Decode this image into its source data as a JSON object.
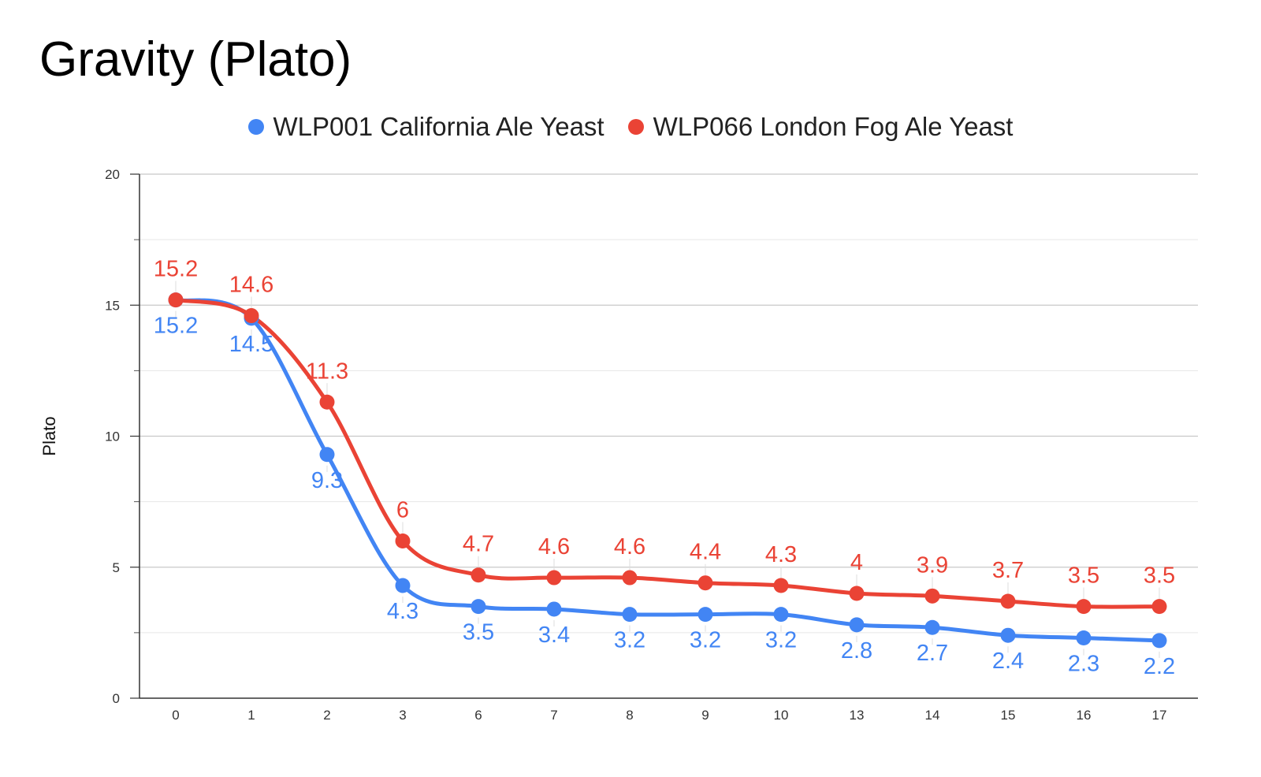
{
  "chart_data": {
    "type": "line",
    "title": "Gravity (Plato)",
    "xlabel": "",
    "ylabel": "Plato",
    "categories": [
      "0",
      "1",
      "2",
      "3",
      "6",
      "7",
      "8",
      "9",
      "10",
      "13",
      "14",
      "15",
      "16",
      "17"
    ],
    "ylim": [
      0,
      20
    ],
    "yticks": [
      "0",
      "5",
      "10",
      "15",
      "20"
    ],
    "grid": true,
    "legend_position": "top",
    "series": [
      {
        "name": "WLP001 California Ale Yeast",
        "color": "#4285f4",
        "values": [
          15.2,
          14.5,
          9.3,
          4.3,
          3.5,
          3.4,
          3.2,
          3.2,
          3.2,
          2.8,
          2.7,
          2.4,
          2.3,
          2.2
        ],
        "labels": [
          "15.2",
          "14.5",
          "9.3",
          "4.3",
          "3.5",
          "3.4",
          "3.2",
          "3.2",
          "3.2",
          "2.8",
          "2.7",
          "2.4",
          "2.3",
          "2.2"
        ],
        "label_position": "below"
      },
      {
        "name": "WLP066 London Fog Ale Yeast",
        "color": "#ea4335",
        "values": [
          15.2,
          14.6,
          11.3,
          6,
          4.7,
          4.6,
          4.6,
          4.4,
          4.3,
          4,
          3.9,
          3.7,
          3.5,
          3.5
        ],
        "labels": [
          "15.2",
          "14.6",
          "11.3",
          "6",
          "4.7",
          "4.6",
          "4.6",
          "4.4",
          "4.3",
          "4",
          "3.9",
          "3.7",
          "3.5",
          "3.5"
        ],
        "label_position": "above"
      }
    ]
  }
}
